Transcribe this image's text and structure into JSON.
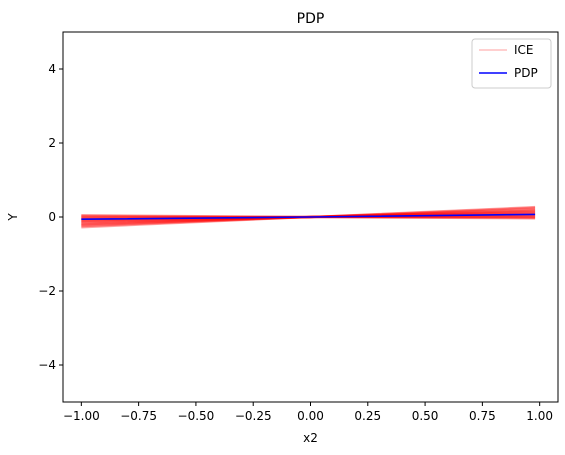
{
  "chart_data": {
    "type": "line",
    "title": "PDP",
    "xlabel": "x2",
    "ylabel": "Y",
    "xlim": [
      -1.08,
      1.08
    ],
    "ylim": [
      -5,
      5
    ],
    "xticks": [
      -1.0,
      -0.75,
      -0.5,
      -0.25,
      0.0,
      0.25,
      0.5,
      0.75,
      1.0
    ],
    "xtick_labels": [
      "−1.00",
      "−0.75",
      "−0.50",
      "−0.25",
      "0.00",
      "0.25",
      "0.50",
      "0.75",
      "1.00"
    ],
    "yticks": [
      -4,
      -2,
      0,
      2,
      4
    ],
    "ytick_labels": [
      "−4",
      "−2",
      "0",
      "2",
      "4"
    ],
    "grid": false,
    "legend_position": "top-right",
    "series": [
      {
        "name": "ICE",
        "color": "#ff0000",
        "alpha": 0.25,
        "style": "thin-translucent-lines",
        "x": [
          -1.0,
          0.0,
          0.98
        ],
        "lines": [
          [
            -0.28,
            0.0,
            0.27
          ],
          [
            -0.25,
            0.0,
            0.25
          ],
          [
            -0.22,
            0.0,
            0.22
          ],
          [
            -0.2,
            0.0,
            0.19
          ],
          [
            -0.18,
            0.0,
            0.17
          ],
          [
            -0.15,
            0.0,
            0.15
          ],
          [
            -0.13,
            0.0,
            0.13
          ],
          [
            -0.11,
            0.0,
            0.11
          ],
          [
            -0.09,
            0.0,
            0.09
          ],
          [
            -0.07,
            0.0,
            0.07
          ],
          [
            -0.05,
            0.0,
            0.05
          ],
          [
            -0.03,
            0.0,
            0.03
          ],
          [
            -0.01,
            0.0,
            0.01
          ],
          [
            0.01,
            0.0,
            -0.01
          ],
          [
            0.03,
            0.0,
            -0.02
          ],
          [
            0.05,
            0.0,
            -0.04
          ]
        ]
      },
      {
        "name": "PDP",
        "color": "#0000ff",
        "style": "solid",
        "x": [
          -1.0,
          0.0,
          0.98
        ],
        "y": [
          -0.06,
          0.0,
          0.07
        ]
      }
    ]
  }
}
